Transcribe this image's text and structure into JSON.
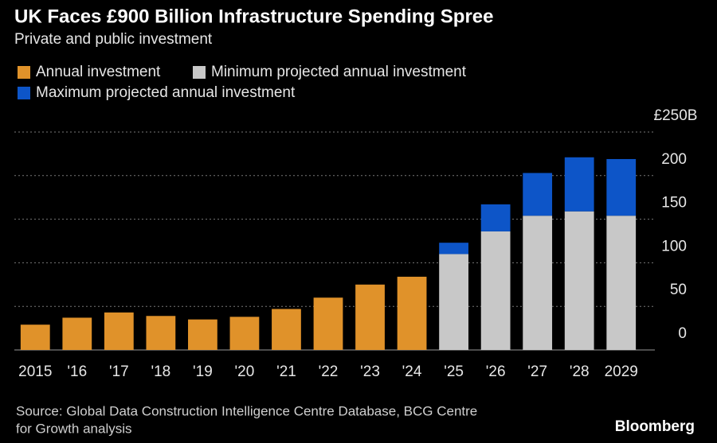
{
  "chart_data": {
    "type": "stacked_bar",
    "title": "UK Faces £900 Billion Infrastructure Spending Spree",
    "subtitle": "Private and public investment",
    "categories": [
      "2015",
      "'16",
      "'17",
      "'18",
      "'19",
      "'20",
      "'21",
      "'22",
      "'23",
      "'24",
      "'25",
      "'26",
      "'27",
      "'28",
      "2029"
    ],
    "series": [
      {
        "name": "Annual investment",
        "color": "#e0922a",
        "values": [
          29,
          37,
          43,
          39,
          35,
          38,
          47,
          60,
          75,
          84,
          null,
          null,
          null,
          null,
          null
        ]
      },
      {
        "name": "Minimum projected annual investment",
        "color": "#c8c8c8",
        "values": [
          null,
          null,
          null,
          null,
          null,
          null,
          null,
          null,
          null,
          null,
          110,
          136,
          154,
          159,
          154
        ]
      },
      {
        "name": "Maximum projected annual investment",
        "color": "#0d55c8",
        "values": [
          null,
          null,
          null,
          null,
          null,
          null,
          null,
          null,
          null,
          null,
          13,
          31,
          49,
          62,
          65
        ]
      }
    ],
    "ylim": [
      0,
      250
    ],
    "yticks": [
      0,
      50,
      100,
      150,
      200,
      {
        "value": 250,
        "label": "£250B"
      }
    ],
    "grid": true,
    "source": [
      "Source: Global Data Construction Intelligence Centre Database, BCG Centre",
      "for Growth analysis"
    ],
    "brand": "Bloomberg"
  }
}
